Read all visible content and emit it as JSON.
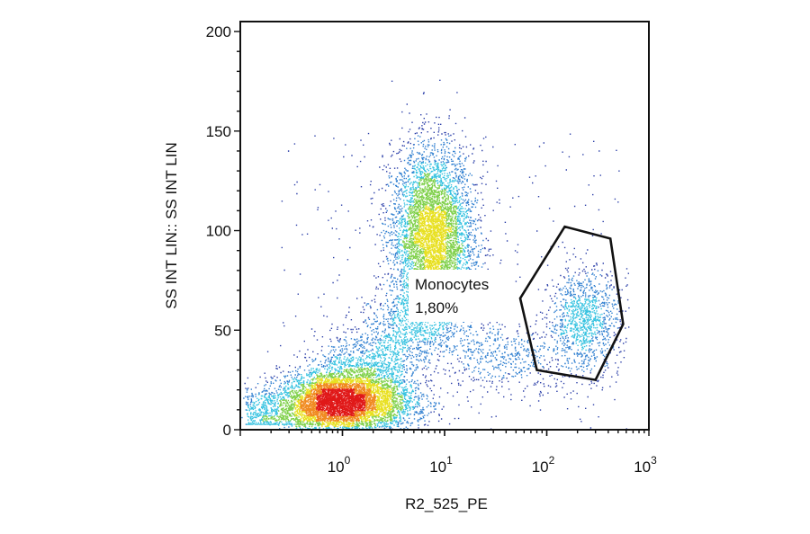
{
  "chart_data": {
    "type": "scatter",
    "subtype": "flow-cytometry-density-dot-plot",
    "xlabel": "R2_525_PE",
    "ylabel": "SS INT LIN:: SS INT LIN",
    "xscale": "log",
    "xlim": [
      0.1,
      1000
    ],
    "ylim": [
      0,
      205
    ],
    "x_ticks": [
      {
        "value": 1,
        "base": "10",
        "exp": "0"
      },
      {
        "value": 10,
        "base": "10",
        "exp": "1"
      },
      {
        "value": 100,
        "base": "10",
        "exp": "2"
      },
      {
        "value": 1000,
        "base": "10",
        "exp": "3"
      }
    ],
    "y_ticks": [
      {
        "value": 0,
        "label": "0"
      },
      {
        "value": 50,
        "label": "50"
      },
      {
        "value": 100,
        "label": "100"
      },
      {
        "value": 150,
        "label": "150"
      },
      {
        "value": 200,
        "label": "200"
      }
    ],
    "grid": false,
    "density_colors": [
      "#2b3fa8",
      "#2f7fd0",
      "#35c2e0",
      "#7fd04a",
      "#e8e020",
      "#f08a20",
      "#e01818"
    ],
    "populations": [
      {
        "center_x": 1.1,
        "center_y": 14,
        "spread_log_x": 0.35,
        "spread_y": 10,
        "density": "high"
      },
      {
        "center_x": 7.5,
        "center_y": 97,
        "spread_log_x": 0.22,
        "spread_y": 22,
        "density": "medium"
      },
      {
        "center_x": 230,
        "center_y": 55,
        "spread_log_x": 0.18,
        "spread_y": 14,
        "density": "low"
      }
    ],
    "gate": {
      "name": "Monocytes",
      "percent": "1,80%",
      "polygon": [
        [
          150,
          102
        ],
        [
          420,
          96
        ],
        [
          560,
          53
        ],
        [
          300,
          25
        ],
        [
          80,
          30
        ],
        [
          55,
          66
        ]
      ]
    }
  }
}
